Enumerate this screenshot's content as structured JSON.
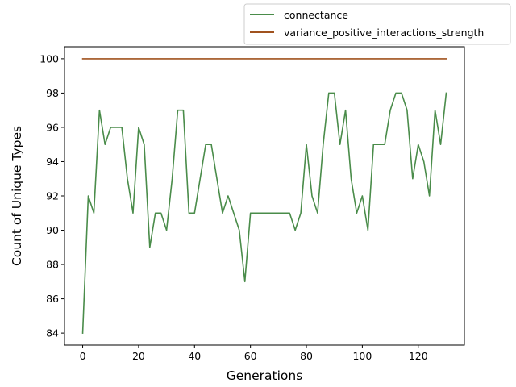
{
  "chart_data": {
    "type": "line",
    "title": "",
    "xlabel": "Generations",
    "ylabel": "Count of Unique Types",
    "xlim": [
      -6.5,
      136.5
    ],
    "ylim": [
      83.3,
      100.7
    ],
    "xticks": [
      0,
      20,
      40,
      60,
      80,
      100,
      120
    ],
    "yticks": [
      84,
      86,
      88,
      90,
      92,
      94,
      96,
      98,
      100
    ],
    "grid": false,
    "legend_position": "outside top-right",
    "series": [
      {
        "name": "connectance",
        "color": "#4a8c4a",
        "x": [
          0,
          2,
          4,
          6,
          8,
          10,
          12,
          14,
          16,
          18,
          20,
          22,
          24,
          26,
          28,
          30,
          32,
          34,
          36,
          38,
          40,
          42,
          44,
          46,
          48,
          50,
          52,
          54,
          56,
          58,
          60,
          62,
          64,
          66,
          68,
          70,
          72,
          74,
          76,
          78,
          80,
          82,
          84,
          86,
          88,
          90,
          92,
          94,
          96,
          98,
          100,
          102,
          104,
          106,
          108,
          110,
          112,
          114,
          116,
          118,
          120,
          122,
          124,
          126,
          128,
          130
        ],
        "values": [
          84,
          92,
          91,
          97,
          95,
          96,
          96,
          96,
          93,
          91,
          96,
          95,
          89,
          91,
          91,
          90,
          93,
          97,
          97,
          91,
          91,
          93,
          95,
          95,
          93,
          91,
          92,
          91,
          90,
          87,
          91,
          91,
          91,
          91,
          91,
          91,
          91,
          91,
          90,
          91,
          95,
          92,
          91,
          95,
          98,
          98,
          95,
          97,
          93,
          91,
          92,
          90,
          95,
          95,
          95,
          97,
          98,
          98,
          97,
          93,
          95,
          94,
          92,
          97,
          95,
          98
        ]
      },
      {
        "name": "variance_positive_interactions_strength",
        "color": "#a0521e",
        "x": [
          0,
          130
        ],
        "values": [
          100,
          100
        ]
      }
    ]
  }
}
